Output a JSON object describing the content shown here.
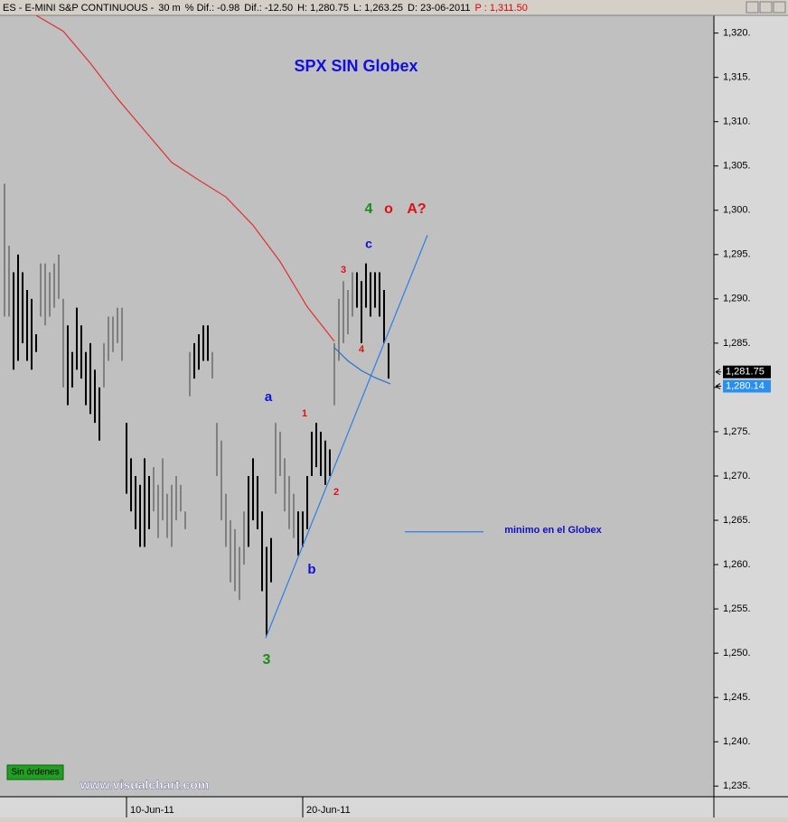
{
  "header": {
    "parts": [
      "ES - E-MINI S&P CONTINUOUS -",
      "30 m",
      "% Dif.: -0.98",
      "Dif.: -12.50",
      "H: 1,280.75",
      "L: 1,263.25",
      "D: 23-06-2011"
    ],
    "price": "P : 1,311.50"
  },
  "chart_data": {
    "type": "range-bar",
    "title": "SPX SIN Globex",
    "ylim": [
      1233.8,
      1322.0
    ],
    "yticks": [
      {
        "value": 1235,
        "label": "1,235."
      },
      {
        "value": 1240,
        "label": "1,240."
      },
      {
        "value": 1245,
        "label": "1,245."
      },
      {
        "value": 1250,
        "label": "1,250."
      },
      {
        "value": 1255,
        "label": "1,255."
      },
      {
        "value": 1260,
        "label": "1,260."
      },
      {
        "value": 1265,
        "label": "1,265."
      },
      {
        "value": 1270,
        "label": "1,270."
      },
      {
        "value": 1275,
        "label": "1,275."
      },
      {
        "value": 1280,
        "label": "1,280."
      },
      {
        "value": 1285,
        "label": "1,285."
      },
      {
        "value": 1290,
        "label": "1,290."
      },
      {
        "value": 1295,
        "label": "1,295."
      },
      {
        "value": 1300,
        "label": "1,300."
      },
      {
        "value": 1305,
        "label": "1,305."
      },
      {
        "value": 1310,
        "label": "1,310."
      },
      {
        "value": 1315,
        "label": "1,315."
      },
      {
        "value": 1320,
        "label": "1,320."
      }
    ],
    "xlim": [
      -1,
      157
    ],
    "xticks": [
      {
        "value": 27,
        "label": "10-Jun-11"
      },
      {
        "value": 66,
        "label": "20-Jun-11"
      }
    ],
    "high": [
      1303,
      1296,
      1293,
      1295,
      1293,
      1291,
      1290,
      1286,
      1294,
      1294,
      1293,
      1294,
      1295,
      1290,
      1287,
      1284,
      1289,
      1287,
      1284,
      1285,
      1282,
      1280,
      1285,
      1288,
      1288,
      1289,
      1289,
      1276,
      1272,
      1270,
      1269,
      1272,
      1270,
      1271,
      1269,
      1272,
      1268,
      1269,
      1270,
      1269,
      1266,
      1284,
      1285,
      1286,
      1287,
      1287,
      1284,
      1276,
      1274,
      1268,
      1265,
      1264,
      1262,
      1266,
      1270,
      1272,
      1270,
      1266,
      1262,
      1263,
      1276,
      1275,
      1272,
      1270,
      1268,
      1266,
      1266,
      1270,
      1275,
      1276,
      1275,
      1274,
      1273,
      1285,
      1290,
      1292,
      1291,
      1293,
      1293,
      1292,
      1294,
      1293,
      1293,
      1293,
      1291,
      1285
    ],
    "low": [
      1288,
      1288,
      1282,
      1283,
      1285,
      1283,
      1282,
      1284,
      1288,
      1287,
      1288,
      1289,
      1290,
      1280,
      1278,
      1280,
      1282,
      1281,
      1278,
      1277,
      1276,
      1274,
      1280,
      1283,
      1284,
      1285,
      1283,
      1268,
      1266,
      1264,
      1262,
      1262,
      1264,
      1266,
      1263,
      1265,
      1263,
      1262,
      1265,
      1266,
      1264,
      1279,
      1281,
      1282,
      1283,
      1283,
      1281,
      1270,
      1265,
      1262,
      1258,
      1257,
      1256,
      1260,
      1262,
      1265,
      1264,
      1257,
      1252,
      1258,
      1268,
      1270,
      1266,
      1264,
      1263,
      1261,
      1262,
      1264,
      1270,
      1271,
      1270,
      1269,
      1270,
      1278,
      1283,
      1285,
      1286,
      1288,
      1289,
      1285,
      1289,
      1288,
      1289,
      1288,
      1285,
      1281
    ],
    "bar_colors": [
      "#808080",
      "#808080",
      "#000000",
      "#000000",
      "#000000",
      "#000000",
      "#000000",
      "#000000",
      "#808080",
      "#808080",
      "#808080",
      "#808080",
      "#808080",
      "#808080",
      "#000000",
      "#000000",
      "#000000",
      "#000000",
      "#000000",
      "#000000",
      "#000000",
      "#000000",
      "#808080",
      "#808080",
      "#808080",
      "#808080",
      "#808080",
      "#000000",
      "#000000",
      "#000000",
      "#000000",
      "#000000",
      "#000000",
      "#808080",
      "#808080",
      "#808080",
      "#808080",
      "#808080",
      "#808080",
      "#808080",
      "#808080",
      "#808080",
      "#000000",
      "#000000",
      "#000000",
      "#000000",
      "#808080",
      "#808080",
      "#808080",
      "#808080",
      "#808080",
      "#808080",
      "#808080",
      "#808080",
      "#000000",
      "#000000",
      "#000000",
      "#000000",
      "#000000",
      "#000000",
      "#808080",
      "#808080",
      "#808080",
      "#808080",
      "#808080",
      "#000000",
      "#000000",
      "#000000",
      "#000000",
      "#000000",
      "#000000",
      "#000000",
      "#000000",
      "#808080",
      "#808080",
      "#808080",
      "#808080",
      "#808080",
      "#000000",
      "#000000",
      "#000000",
      "#000000",
      "#000000",
      "#000000",
      "#000000",
      "#000000"
    ],
    "lines": [
      {
        "color": "#e03030",
        "x": [
          7,
          13,
          19,
          25,
          31,
          37,
          43,
          49,
          55,
          61,
          67,
          73
        ],
        "values": [
          1322.0,
          1320.2,
          1316.6,
          1312.6,
          1309.0,
          1305.4,
          1303.4,
          1301.5,
          1298.3,
          1294.2,
          1289.1,
          1285.2
        ]
      },
      {
        "color": "#2a6fc9",
        "x": [
          73,
          76,
          79,
          82,
          85.4
        ],
        "values": [
          1284.5,
          1283.0,
          1281.9,
          1281.1,
          1280.4
        ]
      },
      {
        "color": "#2a7fe0",
        "x": [
          57.8,
          93.6
        ],
        "values": [
          1251.7,
          1297.2
        ]
      },
      {
        "color": "#2a7fe0",
        "x": [
          88.6,
          106
        ],
        "values": [
          1263.7,
          1263.7
        ]
      }
    ],
    "price_tags": [
      {
        "value": 1281.75,
        "label": "1,281.75",
        "color": "#000000"
      },
      {
        "value": 1280.14,
        "label": "1,280.14",
        "color": "#2a8ff0"
      }
    ],
    "annotations": [
      {
        "text": "4",
        "color": "#1a8a1a"
      },
      {
        "text": "o",
        "color": "#e01010"
      },
      {
        "text": "A?",
        "color": "#e01010"
      },
      {
        "text": "c",
        "color": "#1010e0"
      },
      {
        "text": "3",
        "color": "#e01010"
      },
      {
        "text": "4",
        "color": "#e01010"
      },
      {
        "text": "a",
        "color": "#1010e0"
      },
      {
        "text": "1",
        "color": "#e01010"
      },
      {
        "text": "2",
        "color": "#e01010"
      },
      {
        "text": "b",
        "color": "#1010e0"
      },
      {
        "text": "3",
        "color": "#1a8a1a"
      },
      {
        "text": "minimo en el Globex",
        "color": "#1010c0"
      }
    ]
  },
  "footer": {
    "status": "Sin órdenes",
    "watermark": "www.visualchart.com"
  }
}
